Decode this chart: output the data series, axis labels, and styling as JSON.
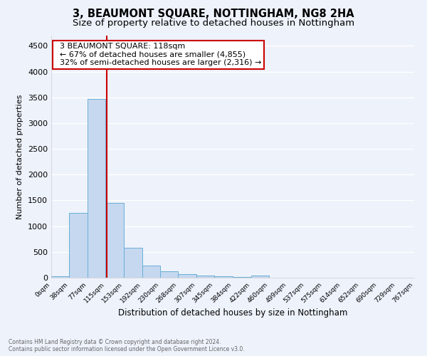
{
  "title": "3, BEAUMONT SQUARE, NOTTINGHAM, NG8 2HA",
  "subtitle": "Size of property relative to detached houses in Nottingham",
  "xlabel": "Distribution of detached houses by size in Nottingham",
  "ylabel": "Number of detached properties",
  "bar_values": [
    25,
    1255,
    3465,
    1455,
    580,
    240,
    120,
    75,
    45,
    30,
    20,
    45,
    0,
    0,
    0,
    0,
    0,
    0,
    0,
    0
  ],
  "bin_edges": [
    0,
    38,
    77,
    115,
    153,
    192,
    230,
    268,
    307,
    345,
    384,
    422,
    460,
    499,
    537,
    575,
    614,
    652,
    690,
    729,
    767
  ],
  "tick_labels": [
    "0sqm",
    "38sqm",
    "77sqm",
    "115sqm",
    "153sqm",
    "192sqm",
    "230sqm",
    "268sqm",
    "307sqm",
    "345sqm",
    "384sqm",
    "422sqm",
    "460sqm",
    "499sqm",
    "537sqm",
    "575sqm",
    "614sqm",
    "652sqm",
    "690sqm",
    "729sqm",
    "767sqm"
  ],
  "bar_color": "#c5d8f0",
  "bar_edge_color": "#6aaed6",
  "vline_x": 118,
  "vline_color": "#cc0000",
  "ylim": [
    0,
    4700
  ],
  "yticks": [
    0,
    500,
    1000,
    1500,
    2000,
    2500,
    3000,
    3500,
    4000,
    4500
  ],
  "annotation_text": "  3 BEAUMONT SQUARE: 118sqm\n  ← 67% of detached houses are smaller (4,855)\n  32% of semi-detached houses are larger (2,316) →",
  "annotation_box_color": "#cc0000",
  "footer_text": "Contains HM Land Registry data © Crown copyright and database right 2024.\nContains public sector information licensed under the Open Government Licence v3.0.",
  "bg_color": "#edf2fb",
  "grid_color": "#ffffff",
  "title_fontsize": 10.5,
  "subtitle_fontsize": 9.5,
  "ylabel_text": "Number of detached properties"
}
